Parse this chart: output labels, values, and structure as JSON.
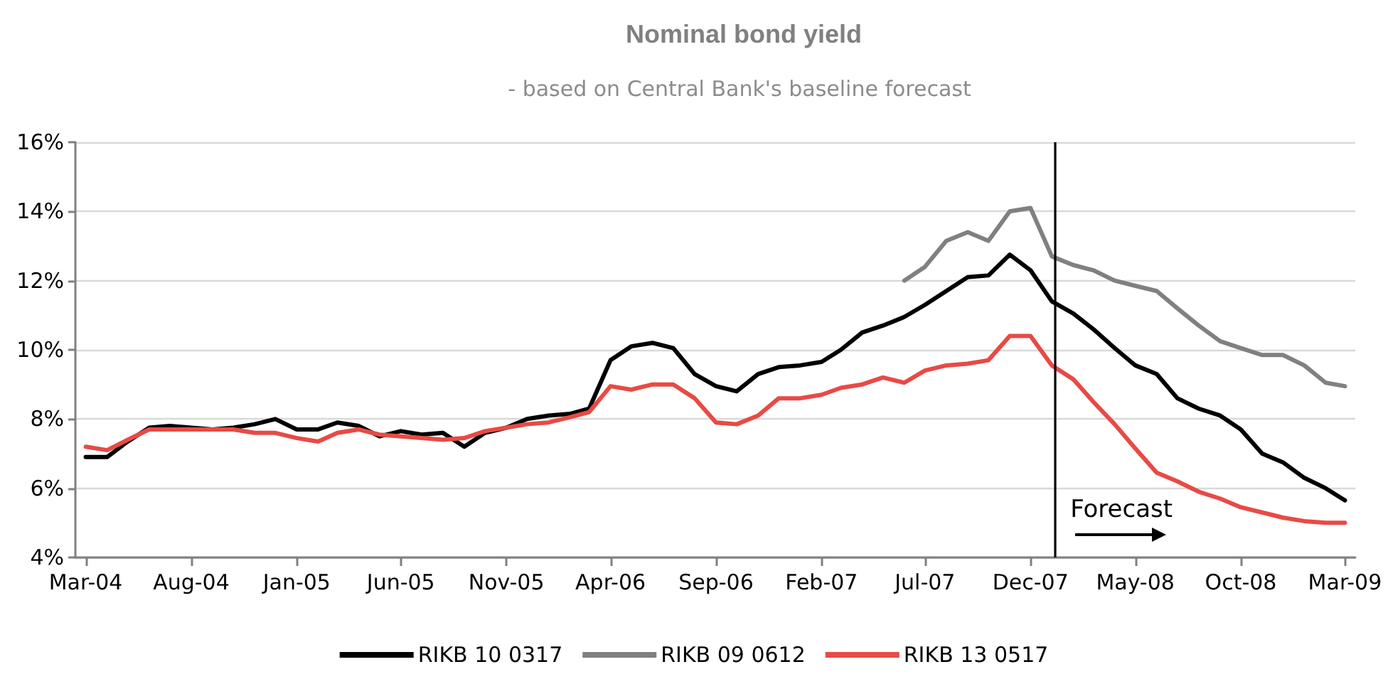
{
  "chart_data": {
    "type": "line",
    "title": "Nominal bond yield",
    "subtitle": "- based on Central Bank's baseline forecast",
    "x": [
      "2004-03",
      "2004-04",
      "2004-05",
      "2004-06",
      "2004-07",
      "2004-08",
      "2004-09",
      "2004-10",
      "2004-11",
      "2004-12",
      "2005-01",
      "2005-02",
      "2005-03",
      "2005-04",
      "2005-05",
      "2005-06",
      "2005-07",
      "2005-08",
      "2005-09",
      "2005-10",
      "2005-11",
      "2005-12",
      "2006-01",
      "2006-02",
      "2006-03",
      "2006-04",
      "2006-05",
      "2006-06",
      "2006-07",
      "2006-08",
      "2006-09",
      "2006-10",
      "2006-11",
      "2006-12",
      "2007-01",
      "2007-02",
      "2007-03",
      "2007-04",
      "2007-05",
      "2007-06",
      "2007-07",
      "2007-08",
      "2007-09",
      "2007-10",
      "2007-11",
      "2007-12",
      "2008-01",
      "2008-02",
      "2008-03",
      "2008-04",
      "2008-05",
      "2008-06",
      "2008-07",
      "2008-08",
      "2008-09",
      "2008-10",
      "2008-11",
      "2008-12",
      "2009-01",
      "2009-02",
      "2009-03"
    ],
    "series": [
      {
        "name": "RIKB 10 0317",
        "color": "#000000",
        "values": [
          6.9,
          6.9,
          7.35,
          7.75,
          7.8,
          7.75,
          7.7,
          7.75,
          7.85,
          8.0,
          7.7,
          7.7,
          7.9,
          7.8,
          7.5,
          7.65,
          7.55,
          7.6,
          7.2,
          7.6,
          7.75,
          8.0,
          8.1,
          8.15,
          8.3,
          9.7,
          10.1,
          10.2,
          10.05,
          9.3,
          8.95,
          8.8,
          9.3,
          9.5,
          9.55,
          9.65,
          10.0,
          10.5,
          10.7,
          10.95,
          11.3,
          11.7,
          12.1,
          12.15,
          12.75,
          12.3,
          11.4,
          11.05,
          10.6,
          10.05,
          9.55,
          9.3,
          8.6,
          8.3,
          8.1,
          7.7,
          7.0,
          6.75,
          6.3,
          6.0,
          5.65
        ]
      },
      {
        "name": "RIKB 09 0612",
        "color": "#808080",
        "values": [
          null,
          null,
          null,
          null,
          null,
          null,
          null,
          null,
          null,
          null,
          null,
          null,
          null,
          null,
          null,
          null,
          null,
          null,
          null,
          null,
          null,
          null,
          null,
          null,
          null,
          null,
          null,
          null,
          null,
          null,
          null,
          null,
          null,
          null,
          null,
          null,
          null,
          null,
          null,
          12.0,
          12.4,
          13.15,
          13.4,
          13.15,
          14.0,
          14.1,
          12.7,
          12.45,
          12.3,
          12.0,
          11.85,
          11.7,
          11.2,
          10.7,
          10.25,
          10.05,
          9.85,
          9.85,
          9.55,
          9.05,
          8.95
        ]
      },
      {
        "name": "RIKB 13 0517",
        "color": "#e84a45",
        "values": [
          7.2,
          7.1,
          7.4,
          7.7,
          7.7,
          7.7,
          7.7,
          7.7,
          7.6,
          7.6,
          7.45,
          7.35,
          7.6,
          7.7,
          7.55,
          7.5,
          7.45,
          7.4,
          7.45,
          7.65,
          7.75,
          7.85,
          7.9,
          8.05,
          8.2,
          8.95,
          8.85,
          9.0,
          9.0,
          8.6,
          7.9,
          7.85,
          8.1,
          8.6,
          8.6,
          8.7,
          8.9,
          9.0,
          9.2,
          9.05,
          9.4,
          9.55,
          9.6,
          9.7,
          10.4,
          10.4,
          9.55,
          9.15,
          8.5,
          7.85,
          7.15,
          6.45,
          6.2,
          5.9,
          5.7,
          5.45,
          5.3,
          5.15,
          5.05,
          5.0,
          5.0
        ]
      }
    ],
    "xlim": [
      "2004-02-15",
      "2009-03-16"
    ],
    "xticks": [
      {
        "value": "2004-03",
        "label": "Mar-04"
      },
      {
        "value": "2004-08",
        "label": "Aug-04"
      },
      {
        "value": "2005-01",
        "label": "Jan-05"
      },
      {
        "value": "2005-06",
        "label": "Jun-05"
      },
      {
        "value": "2005-11",
        "label": "Nov-05"
      },
      {
        "value": "2006-04",
        "label": "Apr-06"
      },
      {
        "value": "2006-09",
        "label": "Sep-06"
      },
      {
        "value": "2007-02",
        "label": "Feb-07"
      },
      {
        "value": "2007-07",
        "label": "Jul-07"
      },
      {
        "value": "2007-12",
        "label": "Dec-07"
      },
      {
        "value": "2008-05",
        "label": "May-08"
      },
      {
        "value": "2008-10",
        "label": "Oct-08"
      },
      {
        "value": "2009-03",
        "label": "Mar-09"
      }
    ],
    "ylim": [
      4,
      16
    ],
    "yticks": [
      {
        "value": 4,
        "label": "4%"
      },
      {
        "value": 6,
        "label": "6%"
      },
      {
        "value": 8,
        "label": "8%"
      },
      {
        "value": 10,
        "label": "10%"
      },
      {
        "value": 12,
        "label": "12%"
      },
      {
        "value": 14,
        "label": "14%"
      },
      {
        "value": 16,
        "label": "16%"
      }
    ],
    "ref_lines": [
      {
        "axis": "x",
        "value": "2008-01-05",
        "label": "Forecast",
        "color": "#000000",
        "line_style": "solid"
      }
    ],
    "grid": "y",
    "legend": "bottom",
    "marker": "none",
    "line_style": "solid"
  }
}
